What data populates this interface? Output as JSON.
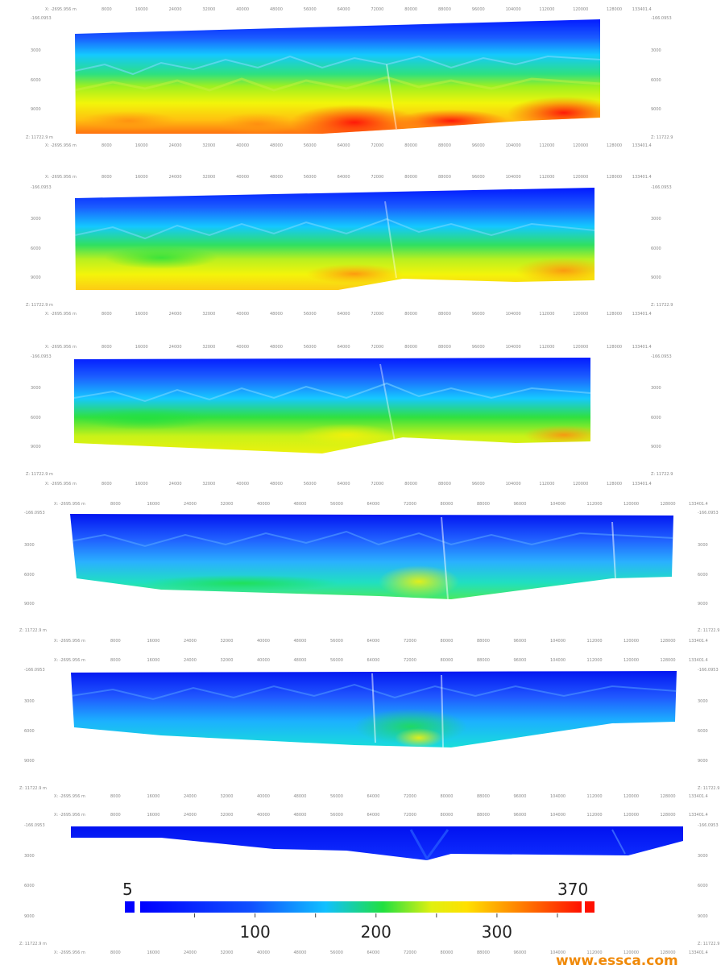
{
  "axis": {
    "x_start_label": "X: -2695.956 m",
    "x_end_label": "133401.4",
    "x_ticks": [
      "8000",
      "16000",
      "24000",
      "32000",
      "40000",
      "48000",
      "56000",
      "64000",
      "72000",
      "80000",
      "88000",
      "96000",
      "104000",
      "112000",
      "120000",
      "128000"
    ],
    "z_ticks": [
      "-166.0953",
      "3000",
      "6000",
      "9000"
    ],
    "z_bottom_label": "Z: 11722.9 m",
    "z_bottom_label_right": "Z: 11722.9"
  },
  "panels": [
    {
      "name": "section-1"
    },
    {
      "name": "section-2"
    },
    {
      "name": "section-3"
    },
    {
      "name": "section-4"
    },
    {
      "name": "section-5"
    },
    {
      "name": "section-6"
    }
  ],
  "colorbar": {
    "min_label": "5",
    "max_label": "370",
    "ticks": [
      "100",
      "200",
      "300"
    ],
    "tick_values": [
      100,
      200,
      300
    ],
    "min": 5,
    "max": 370,
    "colormap": [
      "#0000ff",
      "#0080ff",
      "#00e0ff",
      "#00ff40",
      "#c0ff00",
      "#ffff00",
      "#ffa000",
      "#ff2000"
    ]
  },
  "watermark": {
    "text": "www.essca.com"
  }
}
